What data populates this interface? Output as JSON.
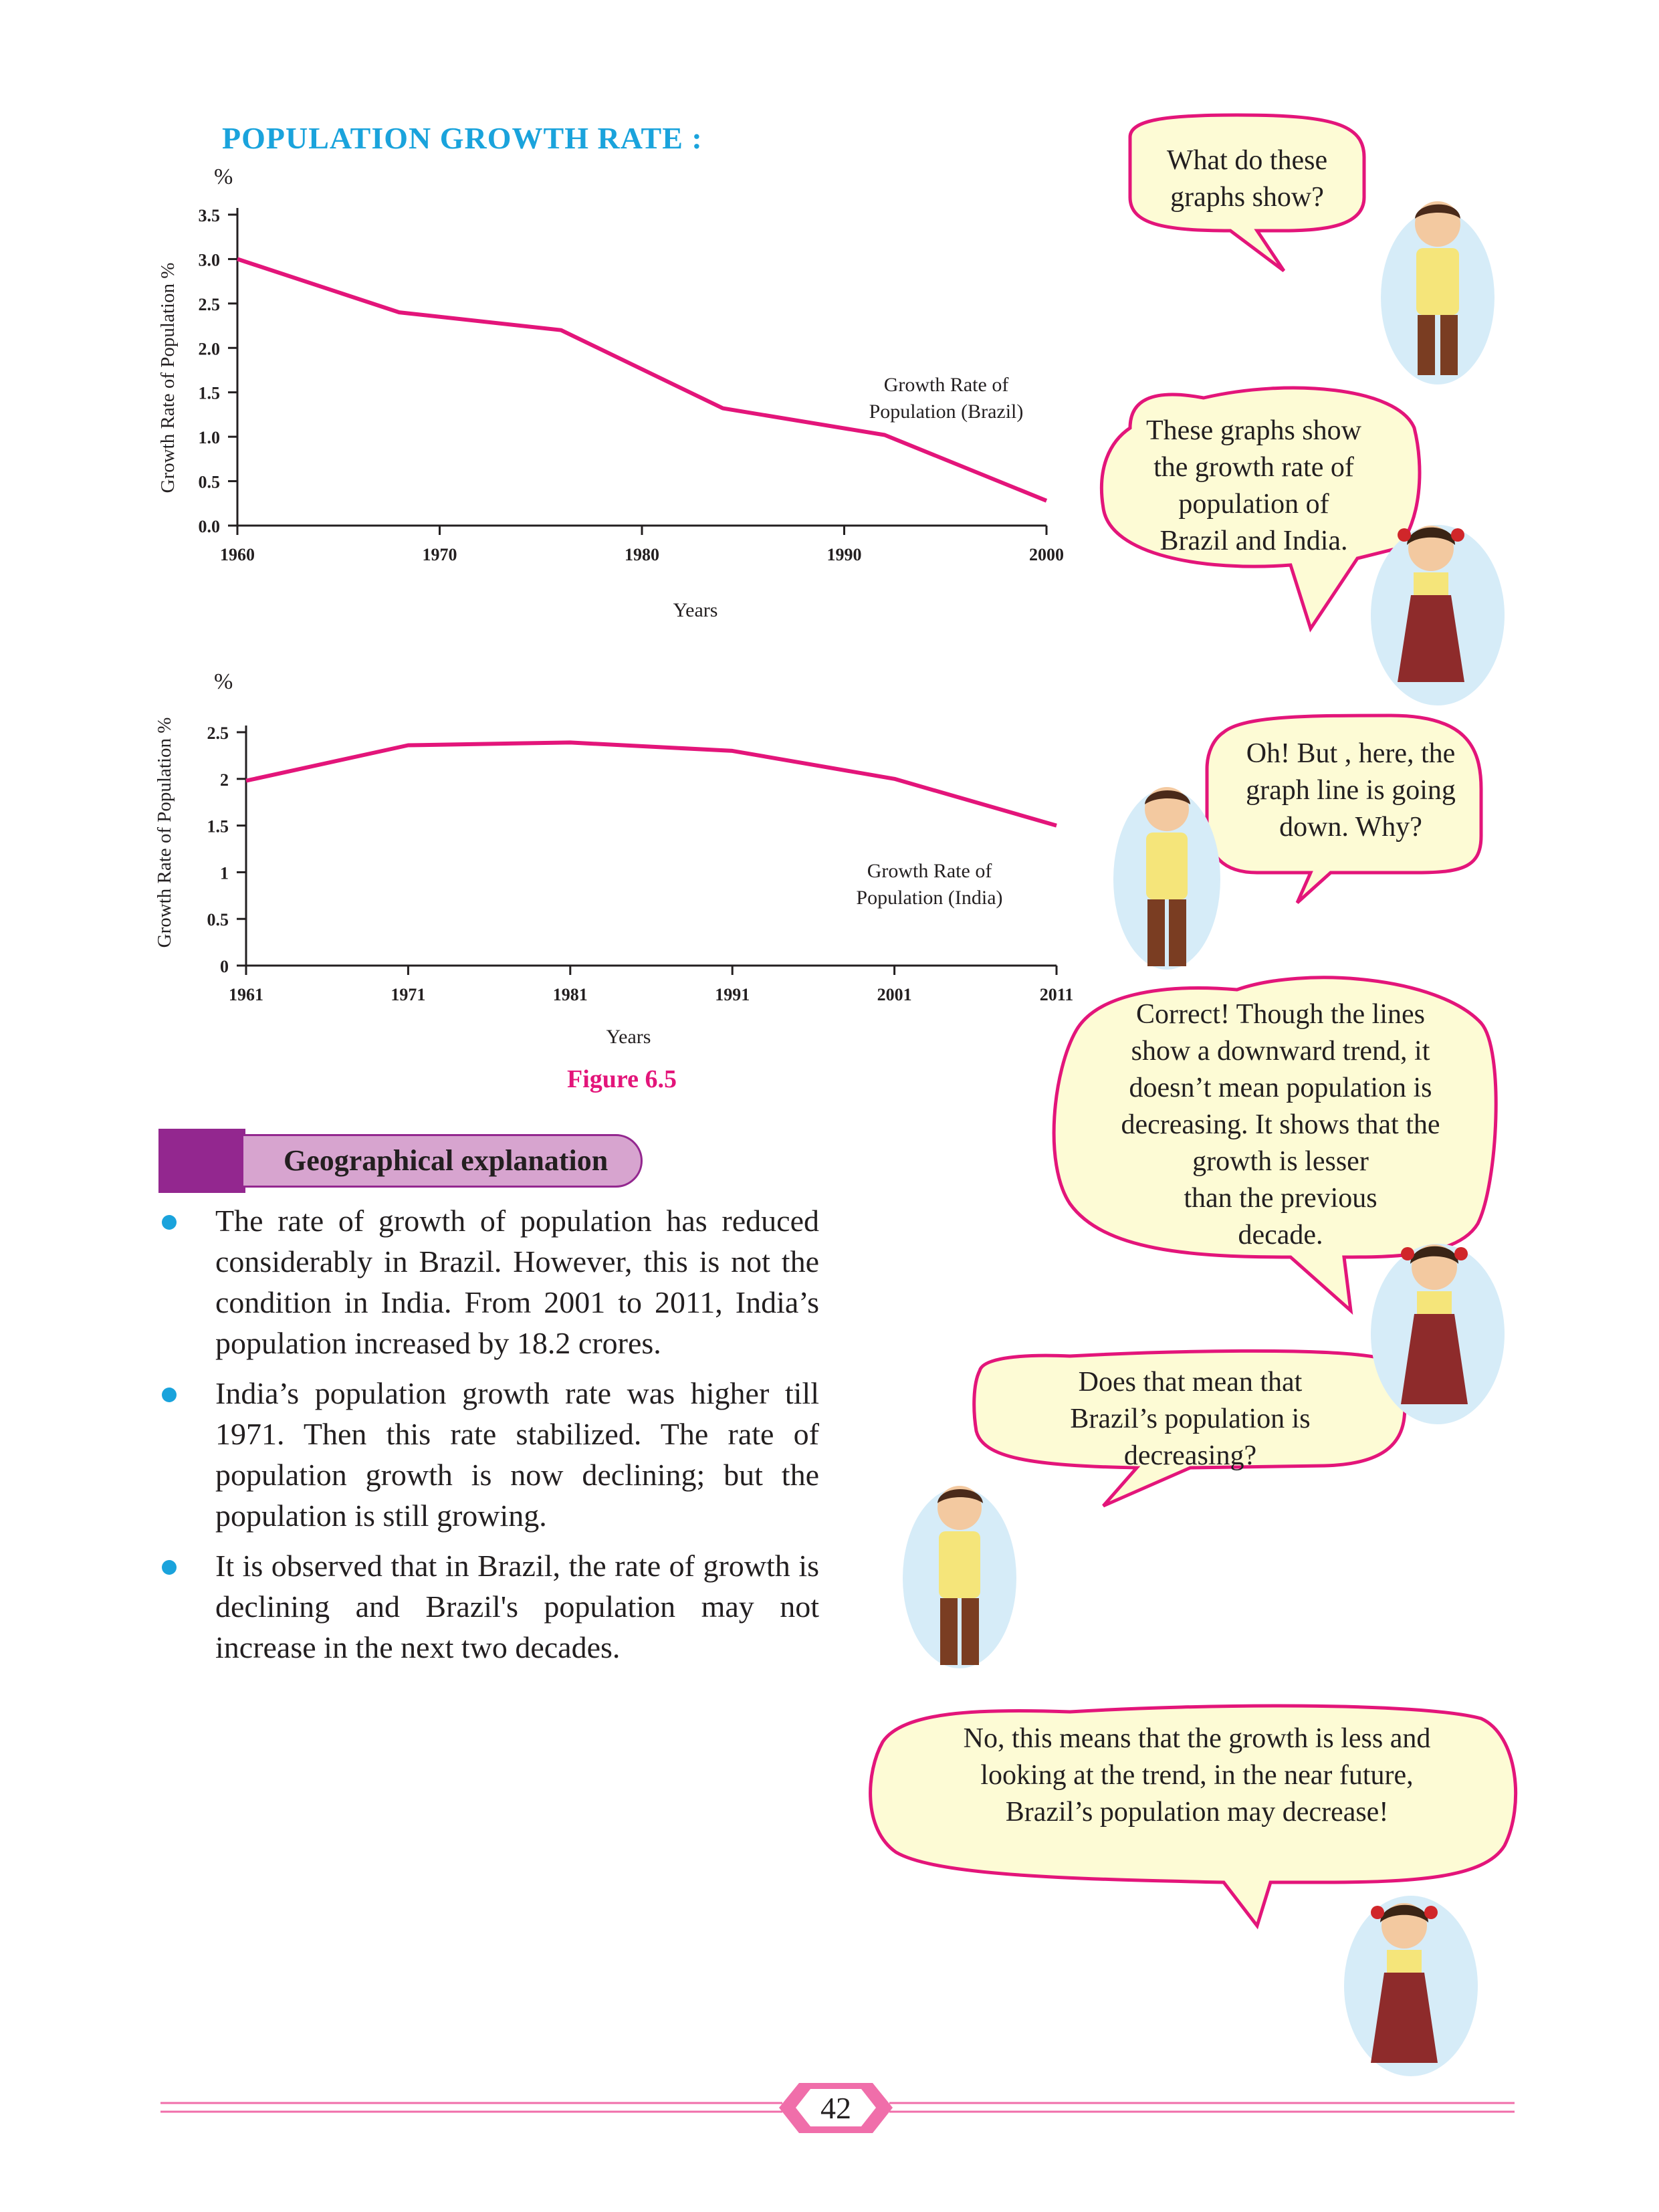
{
  "page_title": "POPULATION GROWTH RATE :",
  "chart_data": [
    {
      "type": "line",
      "unit_label": "%",
      "ylabel": "Growth Rate of Population %",
      "xlabel": "Years",
      "annotation": "Growth Rate of Population (Brazil)",
      "annotation_lines": [
        "Growth Rate of",
        "Population (Brazil)"
      ],
      "x_ticks": [
        "1960",
        "1970",
        "1980",
        "1990",
        "2000"
      ],
      "y_ticks": [
        "0.0",
        "0.5",
        "1.0",
        "1.5",
        "2.0",
        "2.5",
        "3.0",
        "3.5"
      ],
      "ylim": [
        0,
        3.5
      ],
      "xlim": [
        1960,
        2000
      ],
      "x": [
        1960,
        1968,
        1976,
        1984,
        1992,
        2000
      ],
      "y": [
        3.0,
        2.4,
        2.2,
        1.32,
        1.02,
        0.28
      ],
      "color": "#e3157a"
    },
    {
      "type": "line",
      "unit_label": "%",
      "ylabel": "Growth Rate of Population %",
      "xlabel": "Years",
      "annotation": "Growth Rate of Population (India)",
      "annotation_lines": [
        "Growth Rate of",
        "Population (India)"
      ],
      "x_ticks": [
        "1961",
        "1971",
        "1981",
        "1991",
        "2001",
        "2011"
      ],
      "y_ticks": [
        "0",
        "0.5",
        "1",
        "1.5",
        "2",
        "2.5"
      ],
      "ylim": [
        0,
        2.5
      ],
      "xlim": [
        1961,
        2011
      ],
      "x": [
        1961,
        1971,
        1981,
        1991,
        2001,
        2011
      ],
      "y": [
        1.98,
        2.36,
        2.39,
        2.3,
        2.0,
        1.5
      ],
      "color": "#e3157a"
    }
  ],
  "figure_caption": "Figure 6.5",
  "geo_header": "Geographical explanation",
  "bullets": [
    "The rate of growth of population has reduced considerably in Brazil. However, this is not the condition in India. From 2001 to 2011, India’s population increased by 18.2 crores.",
    "India’s population growth rate was higher till 1971. Then this rate stabilized. The rate of population growth is now declining; but the population is still growing.",
    "It is observed that in Brazil,  the rate of growth is declining and Brazil's population may not increase in the next two decades."
  ],
  "dialogue": [
    {
      "speaker": "boy",
      "lines": [
        "What do these",
        "graphs show?"
      ]
    },
    {
      "speaker": "girl",
      "lines": [
        "These graphs show",
        "the growth rate of",
        "population of",
        "Brazil and India."
      ]
    },
    {
      "speaker": "boy",
      "lines": [
        "Oh! But , here, the",
        "graph line is going",
        "down. Why?"
      ]
    },
    {
      "speaker": "girl",
      "lines": [
        "Correct! Though the lines",
        "show a downward trend, it",
        "doesn’t mean population is",
        "decreasing. It shows that the",
        "growth is lesser",
        "than the previous",
        "decade."
      ]
    },
    {
      "speaker": "boy",
      "lines": [
        "Does that mean that",
        "Brazil’s population is",
        "decreasing?"
      ]
    },
    {
      "speaker": "girl",
      "lines": [
        "No, this means that the growth is less and",
        "looking at the trend, in the near future,",
        "Brazil’s population may decrease!"
      ]
    }
  ],
  "page_number": "42",
  "colors": {
    "accent_blue": "#1aa3dc",
    "magenta": "#e3157a",
    "purple": "#93278f",
    "lilac": "#d7a4cf",
    "bubble_fill": "#fdfbd5",
    "bubble_border": "#e3157a",
    "footer_pink": "#f06eaa"
  }
}
